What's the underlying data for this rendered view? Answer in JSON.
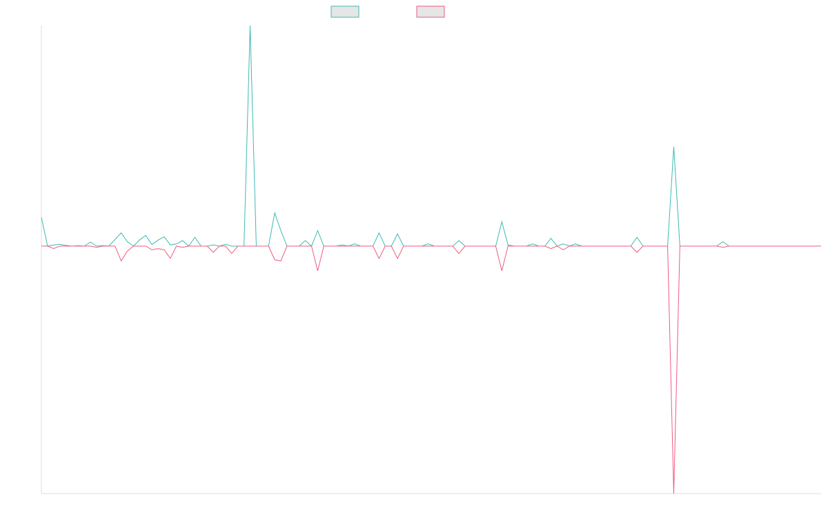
{
  "colors": {
    "series_a": "#3cb9b3",
    "series_b": "#ee5a80",
    "legend_fill": "#e6e6e6",
    "axis": "#dddddd"
  },
  "chart_data": {
    "type": "line",
    "title": "",
    "xlabel": "",
    "ylabel": "",
    "x_count": 128,
    "ylim": [
      -100,
      100
    ],
    "grid": false,
    "legend_position": "top-center",
    "series": [
      {
        "color": "series_a",
        "values": [
          [
            0,
            13
          ],
          [
            1,
            0
          ],
          [
            2,
            0.5
          ],
          [
            3,
            0.8
          ],
          [
            4,
            0.3
          ],
          [
            5,
            0
          ],
          [
            6,
            0.2
          ],
          [
            8,
            1.8
          ],
          [
            9,
            0
          ],
          [
            10,
            0.2
          ],
          [
            12,
            3
          ],
          [
            13,
            6
          ],
          [
            14,
            2
          ],
          [
            15,
            0
          ],
          [
            16,
            2.8
          ],
          [
            17,
            4.8
          ],
          [
            18,
            0.7
          ],
          [
            19,
            2.7
          ],
          [
            20,
            4.2
          ],
          [
            21,
            0.5
          ],
          [
            22,
            1
          ],
          [
            23,
            2.5
          ],
          [
            25,
            4
          ],
          [
            28,
            0.5
          ],
          [
            30,
            0.8
          ],
          [
            32,
            0
          ],
          [
            34,
            100
          ],
          [
            38,
            15
          ],
          [
            39,
            7
          ],
          [
            43,
            2.5
          ],
          [
            45,
            7
          ],
          [
            49,
            0.5
          ],
          [
            51,
            1
          ],
          [
            55,
            6
          ],
          [
            58,
            5.5
          ],
          [
            63,
            1
          ],
          [
            68,
            2.5
          ],
          [
            75,
            11
          ],
          [
            76,
            0.5
          ],
          [
            80,
            1
          ],
          [
            83,
            3.5
          ],
          [
            85,
            1
          ],
          [
            87,
            1
          ],
          [
            97,
            4
          ],
          [
            103,
            45
          ],
          [
            111,
            2
          ]
        ]
      },
      {
        "color": "series_b",
        "values": [
          [
            2,
            -1
          ],
          [
            9,
            -0.5
          ],
          [
            13,
            -6
          ],
          [
            14,
            -2
          ],
          [
            18,
            -1.5
          ],
          [
            19,
            -1
          ],
          [
            20,
            -1.5
          ],
          [
            21,
            -5
          ],
          [
            23,
            -0.5
          ],
          [
            28,
            -2.5
          ],
          [
            31,
            -3
          ],
          [
            38,
            -5.5
          ],
          [
            39,
            -6
          ],
          [
            45,
            -10
          ],
          [
            55,
            -5
          ],
          [
            58,
            -5
          ],
          [
            68,
            -3
          ],
          [
            75,
            -10
          ],
          [
            83,
            -1
          ],
          [
            85,
            -1.5
          ],
          [
            97,
            -2.5
          ],
          [
            103,
            -100
          ],
          [
            111,
            -0.5
          ]
        ]
      }
    ]
  }
}
